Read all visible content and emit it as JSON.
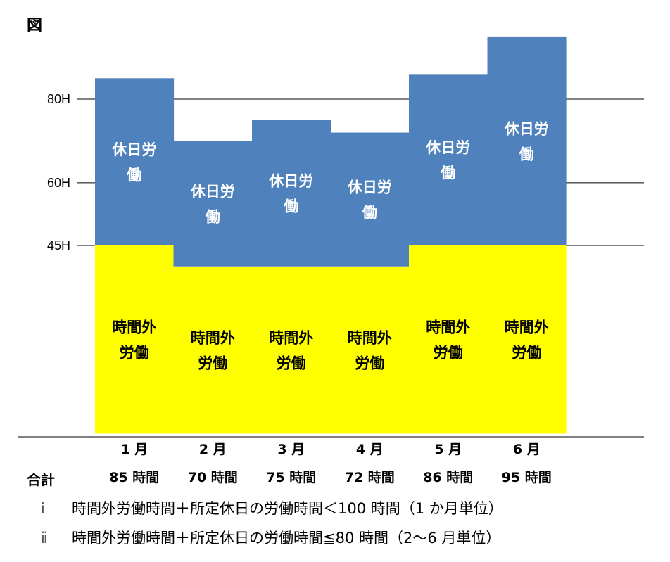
{
  "figure_label": "図",
  "total_label": "合計",
  "notes": [
    {
      "num": "ⅰ",
      "text": "時間外労働時間＋所定休日の労働時間＜100 時間（1 か月単位）"
    },
    {
      "num": "ⅱ",
      "text": "時間外労働時間＋所定休日の労働時間≦80 時間（2～6 月単位）"
    }
  ],
  "chart_data": {
    "type": "bar",
    "stacked": true,
    "categories": [
      "1 月",
      "2 月",
      "3 月",
      "4 月",
      "5 月",
      "6 月"
    ],
    "totals_text": [
      "85 時間",
      "70 時間",
      "75 時間",
      "72 時間",
      "86 時間",
      "95 時間"
    ],
    "series": [
      {
        "name": "時間外労働",
        "label_lines": [
          "時間外",
          "労働"
        ],
        "color": "#ffff00",
        "values": [
          45,
          40,
          40,
          40,
          45,
          45
        ]
      },
      {
        "name": "休日労働",
        "label_lines": [
          "休日労",
          "働"
        ],
        "color": "#4f81bd",
        "values": [
          40,
          30,
          35,
          32,
          41,
          50
        ]
      }
    ],
    "yticks": [
      {
        "value": 45,
        "label": "45H"
      },
      {
        "value": 60,
        "label": "60H"
      },
      {
        "value": 80,
        "label": "80H"
      }
    ],
    "ylim": [
      0,
      95
    ]
  }
}
